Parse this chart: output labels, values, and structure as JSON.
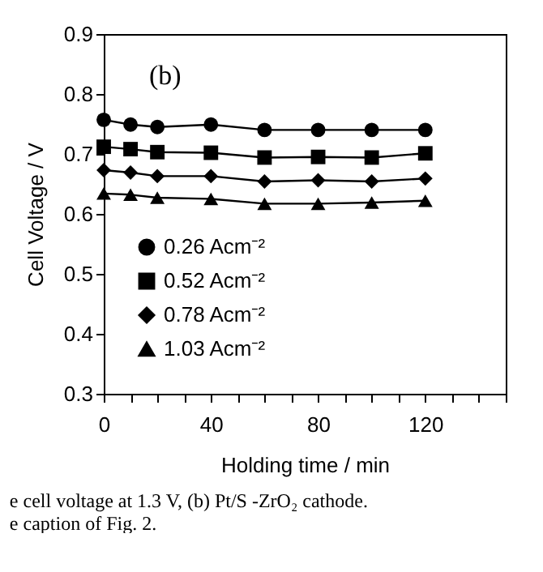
{
  "chart_data": {
    "type": "line",
    "xlabel": "Holding time   /   min",
    "ylabel": "Cell Voltage   /   V",
    "annotations": [
      "(b)",
      "e cell voltage at 1.3 V, (b) Pt/S          -ZrO₂ cathode.",
      "e caption of Fig. 2."
    ],
    "x": [
      0,
      10,
      20,
      40,
      60,
      80,
      100,
      120
    ],
    "series": [
      {
        "name": "0.26 Acm⁻²",
        "color": "#000000",
        "marker": "circle",
        "values": [
          0.757,
          0.749,
          0.745,
          0.749,
          0.74,
          0.74,
          0.74,
          0.74
        ]
      },
      {
        "name": "0.52 Acm⁻²",
        "color": "#000000",
        "marker": "square",
        "values": [
          0.712,
          0.708,
          0.703,
          0.702,
          0.694,
          0.695,
          0.694,
          0.701
        ]
      },
      {
        "name": "0.78 Acm⁻²",
        "color": "#000000",
        "marker": "diamond",
        "values": [
          0.673,
          0.669,
          0.663,
          0.663,
          0.654,
          0.656,
          0.654,
          0.659
        ]
      },
      {
        "name": "1.03 Acm⁻²",
        "color": "#000000",
        "marker": "triangle",
        "values": [
          0.634,
          0.632,
          0.627,
          0.625,
          0.617,
          0.617,
          0.619,
          0.622
        ]
      }
    ],
    "xlim": [
      0,
      150
    ],
    "xticks": [
      0,
      {
        "value": 10,
        "label": null
      },
      {
        "value": 20,
        "label": null
      },
      {
        "value": 30,
        "label": null
      },
      40,
      {
        "value": 50,
        "label": null
      },
      {
        "value": 60,
        "label": null
      },
      {
        "value": 70,
        "label": null
      },
      80,
      {
        "value": 90,
        "label": null
      },
      {
        "value": 100,
        "label": null
      },
      {
        "value": 110,
        "label": null
      },
      120,
      {
        "value": 130,
        "label": null
      },
      {
        "value": 140,
        "label": null
      },
      {
        "value": 150,
        "label": null
      }
    ],
    "ylim": [
      0.3,
      0.9
    ],
    "yticks": [
      0.3,
      0.4,
      0.5,
      0.6,
      0.7,
      0.8,
      0.9
    ],
    "grid": false,
    "legend": "bottom left",
    "line_style": "solid"
  }
}
